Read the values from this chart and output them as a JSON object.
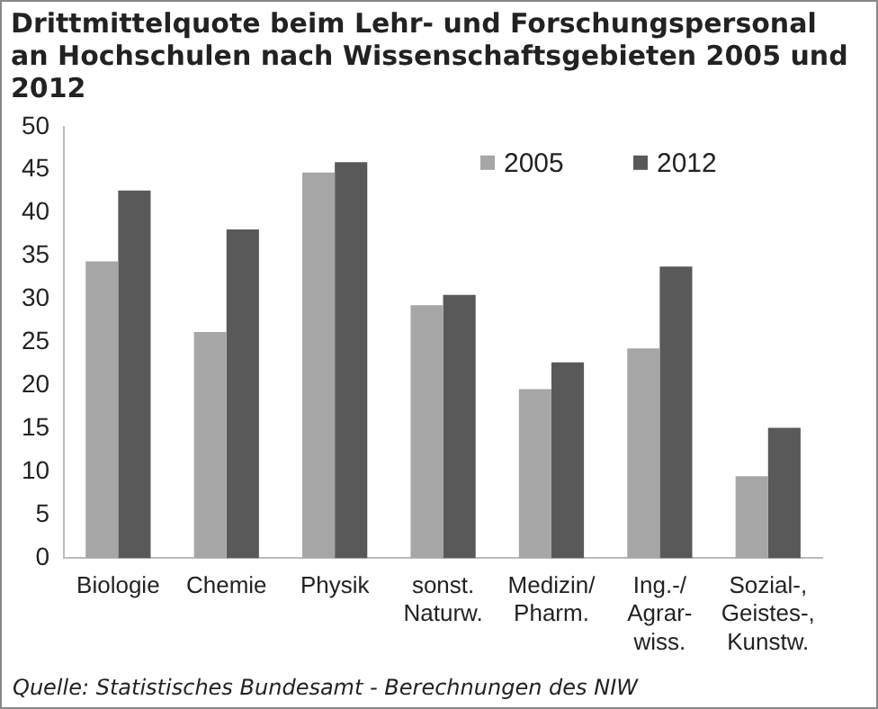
{
  "chart_data": {
    "type": "bar",
    "title": "Drittmittelquote beim Lehr- und Forschungspersonal an Hochschulen nach Wissenschaftsgebieten 2005 und 2012",
    "categories": [
      "Biologie",
      "Chemie",
      "Physik",
      "sonst.\nNaturw.",
      "Medizin/\nPharm.",
      "Ing.-/\nAgrar-\nwiss.",
      "Sozial-,\nGeistes-,\nKunstw."
    ],
    "series": [
      {
        "name": "2005",
        "color": "#a6a6a6",
        "values": [
          34.4,
          26.2,
          44.7,
          29.3,
          19.6,
          24.3,
          9.5
        ]
      },
      {
        "name": "2012",
        "color": "#595959",
        "values": [
          42.6,
          38.1,
          45.9,
          30.5,
          22.7,
          33.8,
          15.1
        ]
      }
    ],
    "ylim": [
      0,
      50
    ],
    "yticks": [
      0,
      5,
      10,
      15,
      20,
      25,
      30,
      35,
      40,
      45,
      50
    ],
    "grid": false,
    "legend": "top right",
    "annotations": [
      "Quelle: Statistisches Bundesamt - Berechnungen des NIW"
    ]
  }
}
